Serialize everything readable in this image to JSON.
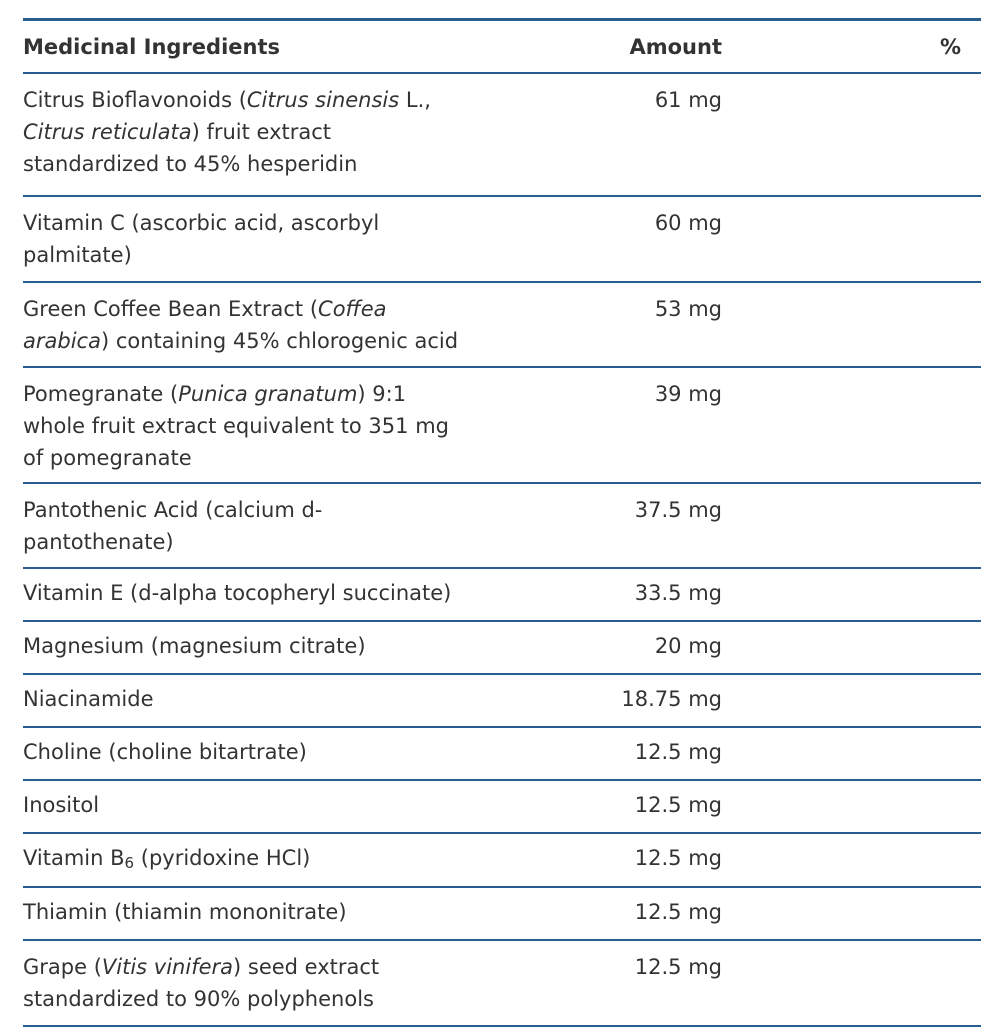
{
  "table": {
    "headers": {
      "ingredients": "Medicinal Ingredients",
      "amount": "Amount",
      "percent": "%"
    },
    "rows": [
      {
        "parts": [
          {
            "t": "Citrus Bioflavonoids ("
          },
          {
            "t": "Citrus sinensis",
            "i": true
          },
          {
            "t": " L.,"
          },
          {
            "br": true
          },
          {
            "t": "Citrus reticulata",
            "i": true
          },
          {
            "t": ") fruit extract"
          },
          {
            "br": true
          },
          {
            "t": "standardized to 45% hesperidin"
          }
        ],
        "amount": "61 mg",
        "percent": ""
      },
      {
        "parts": [
          {
            "t": "Vitamin C (ascorbic acid, ascorbyl"
          },
          {
            "br": true
          },
          {
            "t": "palmitate)"
          }
        ],
        "amount": "60 mg",
        "percent": ""
      },
      {
        "parts": [
          {
            "t": "Green Coffee Bean Extract ("
          },
          {
            "t": "Coffea",
            "i": true
          },
          {
            "br": true
          },
          {
            "t": "arabica",
            "i": true
          },
          {
            "t": ") containing 45% chlorogenic acid"
          }
        ],
        "amount": "53 mg",
        "percent": ""
      },
      {
        "parts": [
          {
            "t": "Pomegranate ("
          },
          {
            "t": "Punica granatum",
            "i": true
          },
          {
            "t": ") 9:1"
          },
          {
            "br": true
          },
          {
            "t": "whole fruit extract equivalent to 351 mg"
          },
          {
            "br": true
          },
          {
            "t": "of pomegranate"
          }
        ],
        "amount": "39 mg",
        "percent": ""
      },
      {
        "parts": [
          {
            "t": "Pantothenic Acid (calcium d-"
          },
          {
            "br": true
          },
          {
            "t": "pantothenate)"
          }
        ],
        "amount": "37.5 mg",
        "percent": ""
      },
      {
        "parts": [
          {
            "t": "Vitamin E (d-alpha tocopheryl succinate)"
          }
        ],
        "amount": "33.5 mg",
        "percent": ""
      },
      {
        "parts": [
          {
            "t": "Magnesium (magnesium citrate)"
          }
        ],
        "amount": "20 mg",
        "percent": ""
      },
      {
        "parts": [
          {
            "t": "Niacinamide"
          }
        ],
        "amount": "18.75 mg",
        "percent": ""
      },
      {
        "parts": [
          {
            "t": "Choline (choline bitartrate)"
          }
        ],
        "amount": "12.5 mg",
        "percent": ""
      },
      {
        "parts": [
          {
            "t": "Inositol"
          }
        ],
        "amount": "12.5 mg",
        "percent": ""
      },
      {
        "parts": [
          {
            "t": "Vitamin B"
          },
          {
            "t": "6",
            "sub": true
          },
          {
            "t": " (pyridoxine HCl)"
          }
        ],
        "amount": "12.5 mg",
        "percent": ""
      },
      {
        "parts": [
          {
            "t": "Thiamin (thiamin mononitrate)"
          }
        ],
        "amount": "12.5 mg",
        "percent": ""
      },
      {
        "parts": [
          {
            "t": "Grape ("
          },
          {
            "t": "Vitis vinifera",
            "i": true
          },
          {
            "t": ") seed extract"
          },
          {
            "br": true
          },
          {
            "t": "standardized to 90% polyphenols"
          }
        ],
        "amount": "12.5 mg",
        "percent": ""
      }
    ]
  }
}
